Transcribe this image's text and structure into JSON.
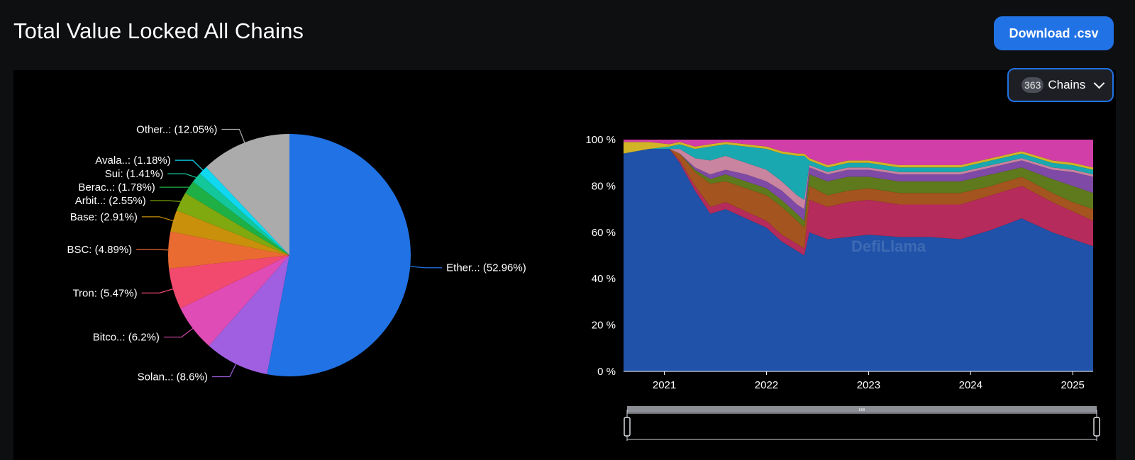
{
  "header": {
    "title": "Total Value Locked All Chains",
    "download_label": "Download .csv"
  },
  "chains_selector": {
    "count": "363",
    "label": "Chains"
  },
  "colors": {
    "accent": "#2172e5"
  },
  "chart_data": [
    {
      "type": "pie",
      "slices": [
        {
          "label": "Ether..: (52.96%)",
          "value": 52.96,
          "color": "#2172e5"
        },
        {
          "label": "Solan..: (8.6%)",
          "value": 8.6,
          "color": "#a05fe0"
        },
        {
          "label": "Bitco..: (6.2%)",
          "value": 6.2,
          "color": "#e04cb5"
        },
        {
          "label": "Tron: (5.47%)",
          "value": 5.47,
          "color": "#f24a6e"
        },
        {
          "label": "BSC: (4.89%)",
          "value": 4.89,
          "color": "#ea6b32"
        },
        {
          "label": "Base: (2.91%)",
          "value": 2.91,
          "color": "#c9900b"
        },
        {
          "label": "Arbit..: (2.55%)",
          "value": 2.55,
          "color": "#7fa90f"
        },
        {
          "label": "Berac..: (1.78%)",
          "value": 1.78,
          "color": "#1fb045"
        },
        {
          "label": "Sui: (1.41%)",
          "value": 1.41,
          "color": "#13c79b"
        },
        {
          "label": "Avala..: (1.18%)",
          "value": 1.18,
          "color": "#0fd8f0"
        },
        {
          "label": "Other..: (12.05%)",
          "value": 12.05,
          "color": "#ababab"
        }
      ]
    },
    {
      "type": "area",
      "stacked": "100%",
      "x_ticks": [
        "2021",
        "2022",
        "2023",
        "2024",
        "2025"
      ],
      "y_ticks": [
        "0 %",
        "20 %",
        "40 %",
        "60 %",
        "80 %",
        "100 %"
      ],
      "ylim": [
        0,
        100
      ],
      "watermark": "DefiLlama",
      "series_colors": [
        "#1f52a8",
        "#b52b5b",
        "#a4541e",
        "#5e7a1c",
        "#7e4aa6",
        "#c9849f",
        "#19a8b0",
        "#d2b526",
        "#d13ea7"
      ],
      "x": [
        2020.6,
        2020.85,
        2021.05,
        2021.15,
        2021.3,
        2021.45,
        2021.6,
        2021.8,
        2022.0,
        2022.15,
        2022.3,
        2022.37,
        2022.42,
        2022.6,
        2022.8,
        2023.0,
        2023.3,
        2023.6,
        2023.9,
        2024.2,
        2024.5,
        2024.8,
        2025.0,
        2025.2
      ],
      "series": [
        {
          "values": [
            94,
            96,
            96,
            90,
            78,
            68,
            70,
            66,
            62,
            56,
            52,
            50,
            60,
            57,
            58,
            59,
            58,
            58,
            57,
            61,
            66,
            60,
            57,
            54
          ]
        },
        {
          "values": [
            0,
            0,
            0,
            1,
            2,
            3,
            3,
            3,
            3,
            3,
            3,
            3,
            14,
            14,
            15,
            15,
            14,
            14,
            15,
            15,
            14,
            13,
            12,
            11
          ]
        },
        {
          "values": [
            0,
            0,
            0,
            3,
            6,
            10,
            9,
            10,
            11,
            12,
            10,
            9,
            6,
            5,
            5,
            5,
            5,
            5,
            5,
            4,
            4,
            4,
            4,
            5
          ]
        },
        {
          "values": [
            0,
            0,
            0,
            0,
            1,
            2,
            3,
            3,
            3,
            3,
            3,
            3,
            5,
            6,
            6,
            5,
            5,
            5,
            5,
            5,
            4,
            6,
            7,
            7
          ]
        },
        {
          "values": [
            0,
            0,
            0,
            0,
            1,
            2,
            2,
            3,
            3,
            4,
            4,
            5,
            3,
            3,
            3,
            3,
            3,
            3,
            3,
            3,
            3,
            4,
            6,
            7
          ]
        },
        {
          "values": [
            0,
            0,
            0,
            2,
            4,
            6,
            6,
            5,
            5,
            4,
            4,
            4,
            1,
            1,
            1,
            1,
            1,
            1,
            1,
            1,
            1,
            1,
            1,
            1
          ]
        },
        {
          "values": [
            0,
            0,
            1,
            2,
            4,
            6,
            5,
            7,
            9,
            12,
            17,
            19,
            2,
            2,
            2,
            2,
            2,
            2,
            2,
            2,
            2,
            2,
            2,
            2
          ]
        },
        {
          "values": [
            5,
            3,
            1,
            1,
            1,
            1,
            1,
            1,
            1,
            1,
            1,
            1,
            1,
            1,
            1,
            1,
            1,
            1,
            1,
            1,
            1,
            1,
            1,
            1
          ]
        },
        {
          "values": [
            1,
            1,
            2,
            1,
            3,
            2,
            1,
            2,
            3,
            5,
            6,
            6,
            8,
            11,
            9,
            9,
            11,
            11,
            11,
            8,
            5,
            9,
            10,
            12
          ]
        }
      ]
    }
  ]
}
